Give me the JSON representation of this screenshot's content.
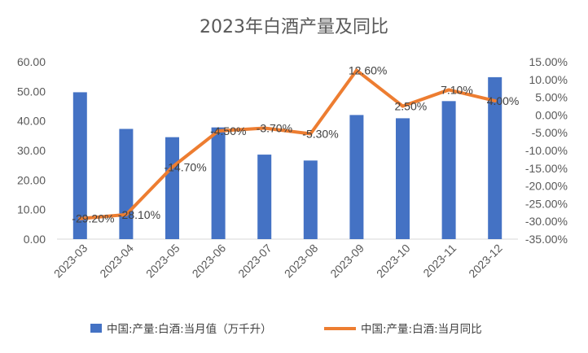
{
  "chart_data": {
    "type": "bar+line",
    "title": "2023年白酒产量及同比",
    "categories": [
      "2023-03",
      "2023-04",
      "2023-05",
      "2023-06",
      "2023-07",
      "2023-08",
      "2023-09",
      "2023-10",
      "2023-11",
      "2023-12"
    ],
    "series": [
      {
        "name": "中国:产量:白酒:当月值（万千升）",
        "type": "bar",
        "axis": "left",
        "color": "#4472C4",
        "values": [
          49.7,
          37.3,
          34.5,
          37.8,
          28.6,
          26.6,
          42.0,
          40.9,
          46.7,
          54.8
        ]
      },
      {
        "name": "中国:产量:白酒:当月同比",
        "type": "line",
        "axis": "right",
        "color": "#ED7D31",
        "values": [
          -29.2,
          -28.1,
          -14.7,
          -4.5,
          -3.7,
          -5.3,
          12.6,
          2.5,
          7.1,
          4.0
        ],
        "data_labels": [
          "-29.20%",
          "-28.10%",
          "-14.70%",
          "-4.50%",
          "-3.70%",
          "-5.30%",
          "12.60%",
          "2.50%",
          "7.10%",
          "4.00%"
        ]
      }
    ],
    "left_axis": {
      "ylim": [
        0,
        60
      ],
      "ticks": [
        "0.00",
        "10.00",
        "20.00",
        "30.00",
        "40.00",
        "50.00",
        "60.00"
      ]
    },
    "right_axis": {
      "ylim": [
        -35,
        15
      ],
      "ticks": [
        "-35.00%",
        "-30.00%",
        "-25.00%",
        "-20.00%",
        "-15.00%",
        "-10.00%",
        "-5.00%",
        "0.00%",
        "5.00%",
        "10.00%",
        "15.00%"
      ]
    },
    "grid": false,
    "legend": "bottom"
  }
}
